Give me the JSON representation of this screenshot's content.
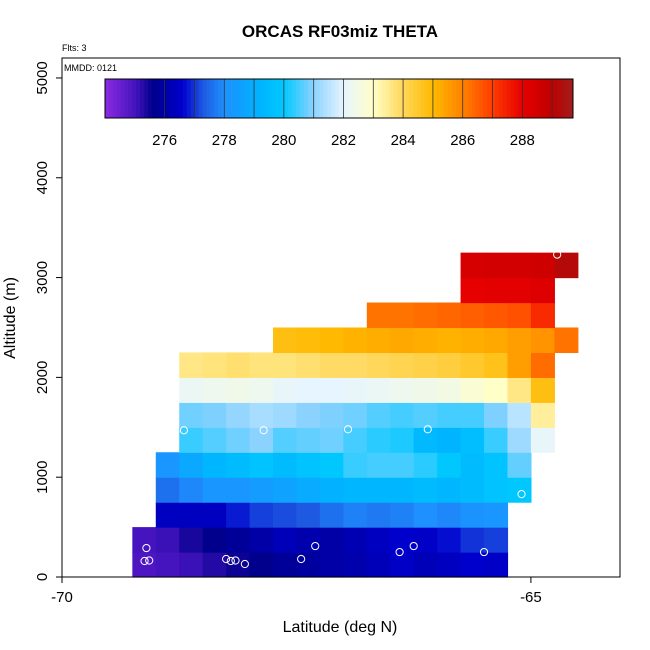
{
  "chart_data": {
    "type": "heatmap",
    "title": "ORCAS RF03miz THETA",
    "flights_label": "Flts: 3",
    "date_label": "MMDD: 0121",
    "xlabel": "Latitude (deg N)",
    "ylabel": "Altitude (m)",
    "xlim": [
      -70,
      -64.05
    ],
    "ylim": [
      0,
      5200
    ],
    "x_ticks": [
      -70,
      -65
    ],
    "y_ticks": [
      0,
      1000,
      2000,
      3000,
      4000,
      5000
    ],
    "colorbar": {
      "min": 274.0,
      "max": 289.7,
      "ticks": [
        276,
        278,
        280,
        282,
        284,
        286,
        288
      ]
    },
    "cell_width_deg": 0.25,
    "cell_height_m": 250,
    "rows": [
      {
        "y0": 0,
        "x0": -69.25,
        "values": [
          274.9,
          275.0,
          275.1,
          275.3,
          275.5,
          275.6,
          275.8,
          275.9,
          276.0,
          276.1,
          276.3,
          276.5,
          276.3,
          276.4,
          276.6,
          276.5
        ]
      },
      {
        "y0": 250,
        "x0": -69.25,
        "values": [
          275.0,
          275.1,
          275.4,
          275.6,
          275.8,
          276.0,
          276.3,
          276.1,
          276.0,
          276.2,
          276.4,
          276.6,
          276.5,
          276.7,
          277.0,
          277.1
        ]
      },
      {
        "y0": 500,
        "x0": -69.0,
        "values": [
          276.4,
          276.4,
          276.4,
          276.8,
          277.1,
          277.2,
          277.3,
          277.6,
          277.8,
          277.7,
          277.8,
          278.0,
          277.9,
          278.1,
          278.2
        ]
      },
      {
        "y0": 750,
        "x0": -69.0,
        "values": [
          277.6,
          277.9,
          278.2,
          278.2,
          278.4,
          278.6,
          278.9,
          279.1,
          279.3,
          279.3,
          279.3,
          279.5,
          279.3,
          279.5,
          279.8,
          280.0
        ]
      },
      {
        "y0": 1000,
        "x0": -69.0,
        "values": [
          278.2,
          278.8,
          279.3,
          279.5,
          279.8,
          279.5,
          279.8,
          280.0,
          280.4,
          280.5,
          280.5,
          280.3,
          280.0,
          279.5,
          279.8,
          280.7
        ]
      },
      {
        "y0": 1250,
        "x0": -68.75,
        "values": [
          280.4,
          280.6,
          280.8,
          281.0,
          280.6,
          280.7,
          280.8,
          280.5,
          280.3,
          280.2,
          279.4,
          279.2,
          279.6,
          280.4,
          281.2,
          282.1
        ]
      },
      {
        "y0": 1500,
        "x0": -68.75,
        "values": [
          280.8,
          280.9,
          281.1,
          281.3,
          281.2,
          281.0,
          280.9,
          280.8,
          280.6,
          280.5,
          280.6,
          280.5,
          280.5,
          280.9,
          281.5,
          283.4
        ]
      },
      {
        "y0": 1750,
        "x0": -68.75,
        "values": [
          282.2,
          282.3,
          282.4,
          282.3,
          282.1,
          282.0,
          282.0,
          282.1,
          282.2,
          282.3,
          282.4,
          282.5,
          282.8,
          283.0,
          283.6,
          284.8
        ]
      },
      {
        "y0": 2000,
        "x0": -68.75,
        "values": [
          283.6,
          283.7,
          283.8,
          283.7,
          283.7,
          283.8,
          283.9,
          283.9,
          284.0,
          284.1,
          284.2,
          284.3,
          284.5,
          284.7,
          285.5,
          286.3
        ]
      },
      {
        "y0": 2250,
        "x0": -67.75,
        "values": [
          284.8,
          284.9,
          285.0,
          285.1,
          285.2,
          285.3,
          285.2,
          285.1,
          285.2,
          285.3,
          285.5,
          285.7,
          286.2
        ]
      },
      {
        "y0": 2500,
        "x0": -66.75,
        "values": [
          286.2,
          286.2,
          286.3,
          286.4,
          286.5,
          286.6,
          286.7,
          287.3
        ]
      },
      {
        "y0": 2750,
        "x0": -65.75,
        "values": [
          288.0,
          288.1,
          288.1,
          288.2
        ]
      },
      {
        "y0": 3000,
        "x0": -65.75,
        "values": [
          288.4,
          288.5,
          288.5,
          288.6
        ]
      },
      {
        "y0": 3000,
        "x0": -64.75,
        "values": [
          289.2
        ]
      }
    ],
    "points": [
      [
        -69.1,
        290
      ],
      [
        -69.12,
        160
      ],
      [
        -69.07,
        165
      ],
      [
        -68.8,
        1310
      ],
      [
        -68.7,
        1470
      ],
      [
        -68.25,
        180
      ],
      [
        -68.2,
        160
      ],
      [
        -68.15,
        165
      ],
      [
        -68.05,
        130
      ],
      [
        -67.85,
        1470
      ],
      [
        -67.45,
        180
      ],
      [
        -67.3,
        310
      ],
      [
        -66.95,
        1480
      ],
      [
        -66.4,
        250
      ],
      [
        -66.25,
        310
      ],
      [
        -66.1,
        1480
      ],
      [
        -65.5,
        250
      ],
      [
        -65.1,
        830
      ],
      [
        -64.72,
        3230
      ]
    ]
  }
}
